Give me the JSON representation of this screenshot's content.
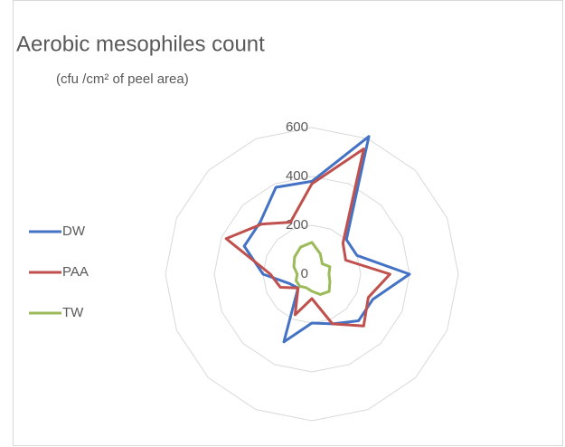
{
  "chart_data": {
    "type": "radar",
    "title": "Aerobic mesophiles  count",
    "subtitle": "(cfu /cm² of peel area)",
    "categories": [
      null,
      null,
      null,
      null,
      null,
      null,
      null,
      null,
      null,
      null,
      null,
      null,
      null,
      null,
      null,
      null
    ],
    "ylim": [
      0,
      600
    ],
    "yticks": [
      0,
      200,
      400,
      600
    ],
    "grid": true,
    "legend": "left",
    "series": [
      {
        "name": "DW",
        "color": "#4472c4",
        "values": [
          380,
          610,
          200,
          200,
          400,
          270,
          270,
          220,
          200,
          300,
          80,
          100,
          200,
          300,
          300,
          385
        ]
      },
      {
        "name": "PAA",
        "color": "#c0504d",
        "values": [
          370,
          555,
          180,
          150,
          320,
          250,
          300,
          220,
          100,
          180,
          80,
          140,
          170,
          380,
          290,
          230
        ]
      },
      {
        "name": "TW",
        "color": "#9bbb59",
        "values": [
          130,
          90,
          60,
          80,
          70,
          80,
          100,
          90,
          70,
          60,
          70,
          70,
          60,
          80,
          100,
          120
        ]
      }
    ]
  }
}
